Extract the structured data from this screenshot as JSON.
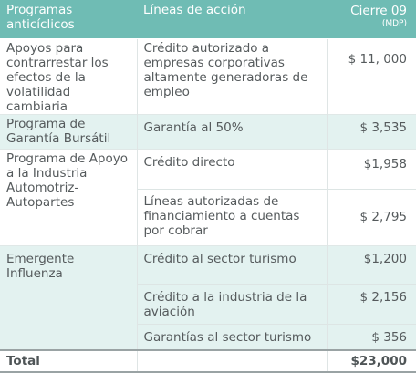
{
  "header": {
    "programs": "Programas anticíclicos",
    "lines": "Líneas de acción",
    "closing": "Cierre 09",
    "unit": "(MDP)"
  },
  "rows": [
    {
      "program": "Apoyos para contrarrestar los efectos de la volatilidad cambiaria",
      "line": "Crédito autorizado a empresas corporativas altamente generadoras de empleo",
      "amount": "$ 11, 000"
    },
    {
      "program": "Programa de Garantía Bursátil",
      "line": "Garantía al 50%",
      "amount": "$ 3,535"
    },
    {
      "program": "Programa de Apoyo a la Industria Automotriz- Autopartes",
      "line": "Crédito directo",
      "amount": "$1,958"
    },
    {
      "line": "Líneas autorizadas de financiamiento a cuentas por cobrar",
      "amount": "$ 2,795"
    },
    {
      "program": "Emergente Influenza",
      "line": "Crédito al sector turismo",
      "amount": "$1,200"
    },
    {
      "line": "Crédito a la industria de la aviación",
      "amount": "$ 2,156"
    },
    {
      "line": "Garantías al sector turismo",
      "amount": "$ 356"
    }
  ],
  "total": {
    "label": "Total",
    "amount": "$23,000"
  }
}
